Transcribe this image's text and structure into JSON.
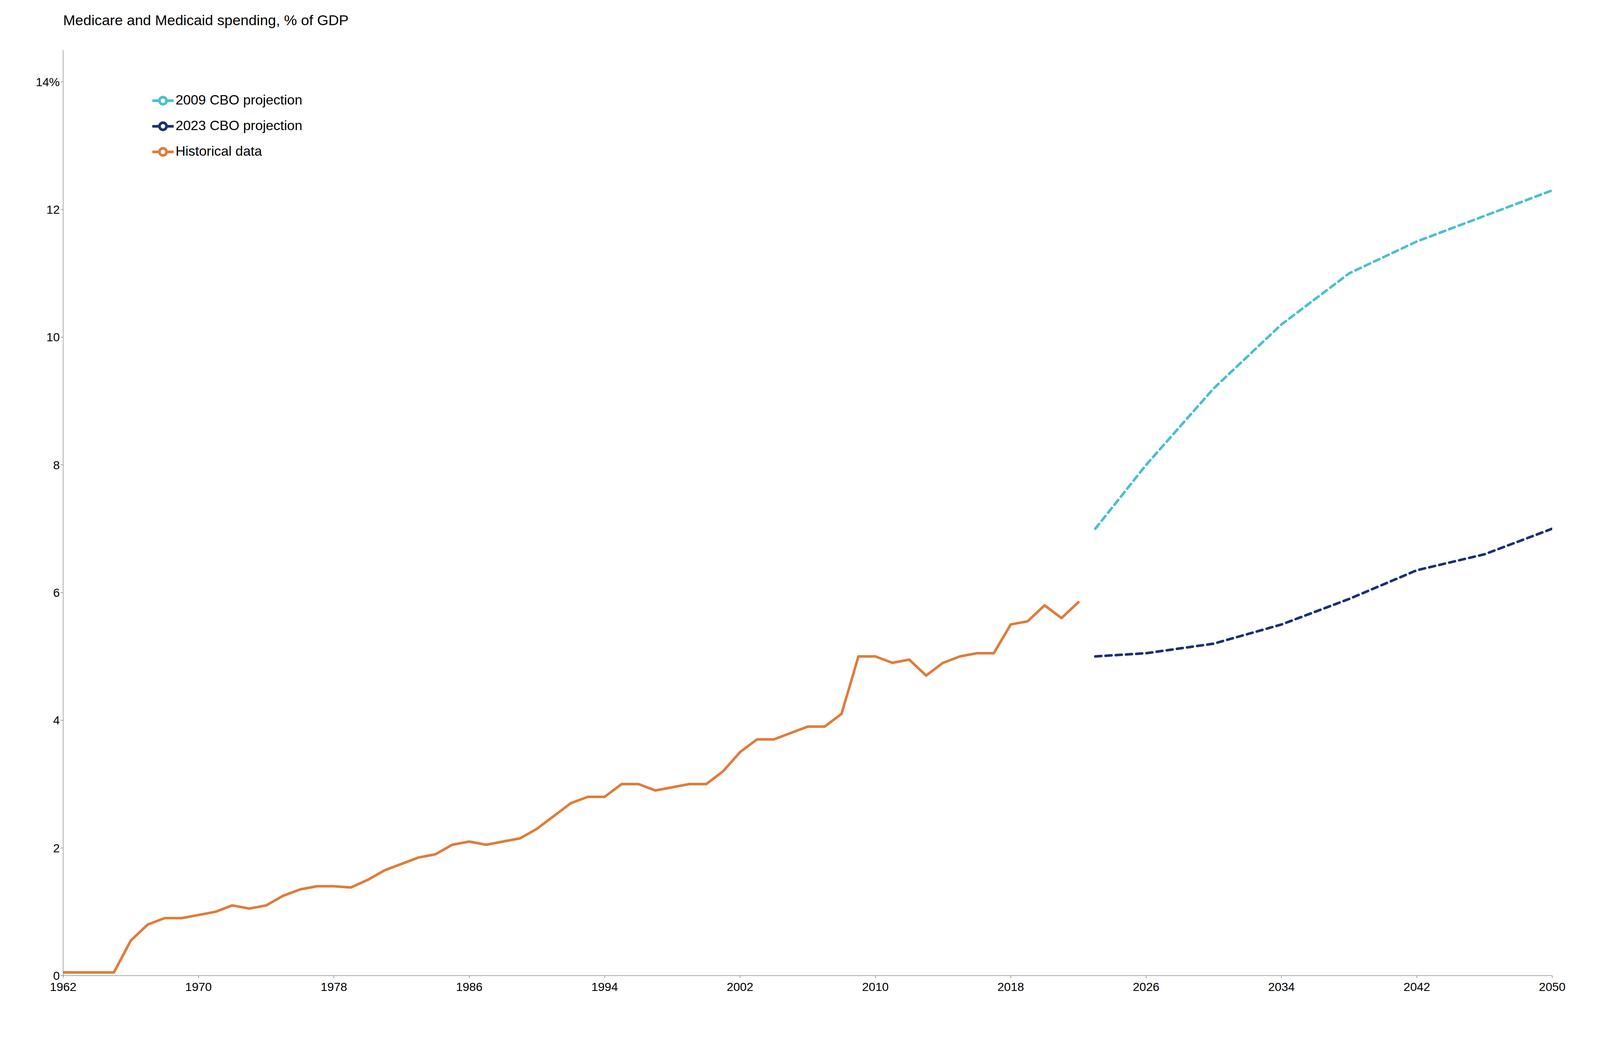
{
  "chart_data": {
    "type": "line",
    "title": "Medicare and Medicaid spending, % of GDP",
    "series": [
      {
        "name": "Historical data",
        "color": "#E07B39",
        "line_style": "solid",
        "x": [
          1962,
          1963,
          1964,
          1965,
          1966,
          1967,
          1968,
          1969,
          1970,
          1971,
          1972,
          1973,
          1974,
          1975,
          1976,
          1977,
          1978,
          1979,
          1980,
          1981,
          1982,
          1983,
          1984,
          1985,
          1986,
          1987,
          1988,
          1989,
          1990,
          1991,
          1992,
          1993,
          1994,
          1995,
          1996,
          1997,
          1998,
          1999,
          2000,
          2001,
          2002,
          2003,
          2004,
          2005,
          2006,
          2007,
          2008,
          2009,
          2010,
          2011,
          2012,
          2013,
          2014,
          2015,
          2016,
          2017,
          2018,
          2019,
          2020,
          2021,
          2022
        ],
        "values": [
          0.05,
          0.05,
          0.05,
          0.05,
          0.55,
          0.8,
          0.9,
          0.9,
          0.95,
          1.0,
          1.1,
          1.05,
          1.1,
          1.25,
          1.35,
          1.4,
          1.4,
          1.38,
          1.5,
          1.65,
          1.75,
          1.85,
          1.9,
          2.05,
          2.1,
          2.05,
          2.1,
          2.15,
          2.3,
          2.5,
          2.7,
          2.8,
          2.8,
          3.0,
          3.0,
          2.9,
          2.95,
          3.0,
          3.0,
          3.2,
          3.5,
          3.7,
          3.7,
          3.8,
          3.9,
          3.9,
          4.1,
          5.0,
          5.0,
          4.9,
          4.95,
          4.7,
          4.9,
          5.0,
          5.05,
          5.05,
          5.5,
          5.55,
          5.8,
          5.6,
          5.85
        ]
      },
      {
        "name": "2009 CBO projection",
        "color": "#4BBFCC",
        "line_style": "dashed",
        "x": [
          2023,
          2026,
          2030,
          2034,
          2038,
          2042,
          2046,
          2050
        ],
        "values": [
          7.0,
          8.0,
          9.2,
          10.2,
          11.0,
          11.5,
          11.9,
          12.3
        ]
      },
      {
        "name": "2023 CBO projection",
        "color": "#1B3070",
        "line_style": "dashed",
        "x": [
          2023,
          2026,
          2030,
          2034,
          2038,
          2042,
          2046,
          2050
        ],
        "values": [
          5.0,
          5.05,
          5.2,
          5.5,
          5.9,
          6.35,
          6.6,
          7.0
        ]
      }
    ],
    "xlim": [
      1962,
      2050
    ],
    "ylim": [
      0,
      14.5
    ],
    "xticks": [
      1962,
      1970,
      1978,
      1986,
      1994,
      2002,
      2010,
      2018,
      2026,
      2034,
      2042,
      2050
    ],
    "yticks": [
      0,
      2,
      4,
      6,
      8,
      10,
      12,
      {
        "value": 14,
        "label": "14%"
      }
    ],
    "grid": false,
    "legend": "upper left"
  }
}
